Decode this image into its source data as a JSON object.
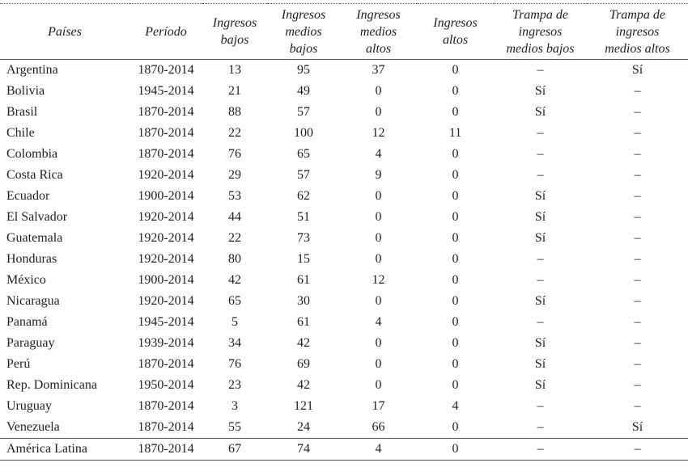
{
  "table": {
    "header": [
      "Países",
      "Período",
      "Ingresos\nbajos",
      "Ingresos\nmedios\nbajos",
      "Ingresos\nmedios\naltos",
      "Ingresos\naltos",
      "Trampa de\ningresos\nmedios bajos",
      "Trampa de\ningresos\nmedios altos"
    ],
    "rows": [
      [
        "Argentina",
        "1870-2014",
        13,
        95,
        37,
        0,
        "–",
        "Sí"
      ],
      [
        "Bolivia",
        "1945-2014",
        21,
        49,
        0,
        0,
        "Sí",
        "–"
      ],
      [
        "Brasil",
        "1870-2014",
        88,
        57,
        0,
        0,
        "Sí",
        "–"
      ],
      [
        "Chile",
        "1870-2014",
        22,
        100,
        12,
        11,
        "–",
        "–"
      ],
      [
        "Colombia",
        "1870-2014",
        76,
        65,
        4,
        0,
        "–",
        "–"
      ],
      [
        "Costa Rica",
        "1920-2014",
        29,
        57,
        9,
        0,
        "–",
        "–"
      ],
      [
        "Ecuador",
        "1900-2014",
        53,
        62,
        0,
        0,
        "Sí",
        "–"
      ],
      [
        "El Salvador",
        "1920-2014",
        44,
        51,
        0,
        0,
        "Sí",
        "–"
      ],
      [
        "Guatemala",
        "1920-2014",
        22,
        73,
        0,
        0,
        "Sí",
        "–"
      ],
      [
        "Honduras",
        "1920-2014",
        80,
        15,
        0,
        0,
        "–",
        "–"
      ],
      [
        "México",
        "1900-2014",
        42,
        61,
        12,
        0,
        "–",
        "–"
      ],
      [
        "Nicaragua",
        "1920-2014",
        65,
        30,
        0,
        0,
        "Sí",
        "–"
      ],
      [
        "Panamá",
        "1945-2014",
        5,
        61,
        4,
        0,
        "–",
        "–"
      ],
      [
        "Paraguay",
        "1939-2014",
        34,
        42,
        0,
        0,
        "Sí",
        "–"
      ],
      [
        "Perú",
        "1870-2014",
        76,
        69,
        0,
        0,
        "Sí",
        "–"
      ],
      [
        "Rep. Dominicana",
        "1950-2014",
        23,
        42,
        0,
        0,
        "Sí",
        "–"
      ],
      [
        "Uruguay",
        "1870-2014",
        3,
        121,
        17,
        4,
        "–",
        "–"
      ],
      [
        "Venezuela",
        "1870-2014",
        55,
        24,
        66,
        0,
        "–",
        "Sí"
      ]
    ],
    "footer": [
      "América Latina",
      "1870-2014",
      67,
      74,
      4,
      0,
      "–",
      "–"
    ]
  }
}
